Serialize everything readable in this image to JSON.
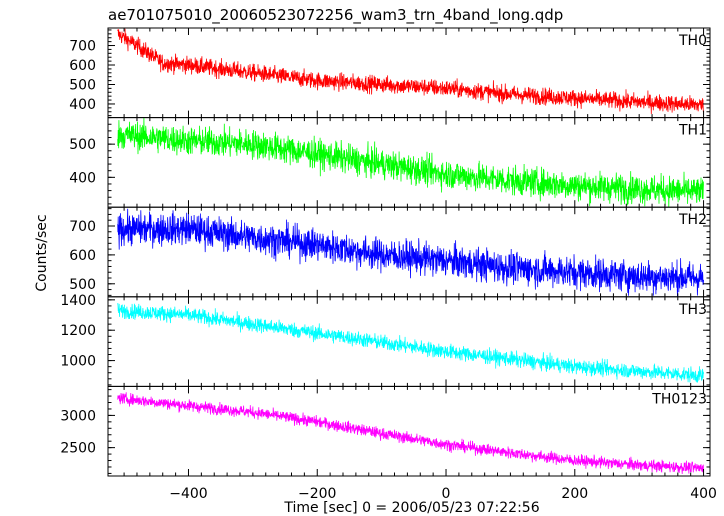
{
  "chart_data": {
    "type": "line",
    "title": "ae701075010_20060523072256_wam3_trn_4band_long.qdp",
    "xlabel": "Time [sec] 0 = 2006/05/23 07:22:56",
    "ylabel": "Counts/sec",
    "xlim": [
      -525,
      410
    ],
    "xticks": [
      -400,
      -200,
      0,
      200,
      400
    ],
    "x_range": [
      -510,
      400
    ],
    "grid": false,
    "panels": [
      {
        "name": "TH0",
        "color": "#ff0000",
        "ylim": [
          330,
          790
        ],
        "yticks": [
          400,
          500,
          600,
          700
        ],
        "trend": [
          [
            -510,
            760
          ],
          [
            -480,
            700
          ],
          [
            -440,
            610
          ],
          [
            -400,
            600
          ],
          [
            -300,
            560
          ],
          [
            -200,
            520
          ],
          [
            -100,
            500
          ],
          [
            0,
            480
          ],
          [
            100,
            450
          ],
          [
            200,
            430
          ],
          [
            300,
            410
          ],
          [
            400,
            395
          ]
        ],
        "noise": 22
      },
      {
        "name": "TH1",
        "color": "#00ff00",
        "ylim": [
          310,
          580
        ],
        "yticks": [
          400,
          500
        ],
        "trend": [
          [
            -510,
            530
          ],
          [
            -400,
            510
          ],
          [
            -300,
            500
          ],
          [
            -200,
            470
          ],
          [
            -100,
            440
          ],
          [
            0,
            410
          ],
          [
            100,
            390
          ],
          [
            200,
            375
          ],
          [
            300,
            365
          ],
          [
            400,
            355
          ]
        ],
        "noise": 22
      },
      {
        "name": "TH2",
        "color": "#0000ff",
        "ylim": [
          455,
          765
        ],
        "yticks": [
          500,
          600,
          700
        ],
        "trend": [
          [
            -510,
            690
          ],
          [
            -400,
            690
          ],
          [
            -300,
            660
          ],
          [
            -200,
            635
          ],
          [
            -100,
            600
          ],
          [
            0,
            580
          ],
          [
            100,
            555
          ],
          [
            200,
            540
          ],
          [
            300,
            525
          ],
          [
            400,
            520
          ]
        ],
        "noise": 28
      },
      {
        "name": "TH3",
        "color": "#00ffff",
        "ylim": [
          830,
          1420
        ],
        "yticks": [
          1000,
          1200,
          1400
        ],
        "trend": [
          [
            -510,
            1330
          ],
          [
            -400,
            1300
          ],
          [
            -300,
            1240
          ],
          [
            -200,
            1180
          ],
          [
            -100,
            1120
          ],
          [
            0,
            1060
          ],
          [
            100,
            1010
          ],
          [
            200,
            960
          ],
          [
            300,
            930
          ],
          [
            400,
            900
          ]
        ],
        "noise": 25
      },
      {
        "name": "TH0123",
        "color": "#ff00ff",
        "ylim": [
          2060,
          3450
        ],
        "yticks": [
          2500,
          3000
        ],
        "trend": [
          [
            -510,
            3270
          ],
          [
            -400,
            3150
          ],
          [
            -300,
            3050
          ],
          [
            -200,
            2900
          ],
          [
            -100,
            2720
          ],
          [
            0,
            2550
          ],
          [
            100,
            2420
          ],
          [
            200,
            2300
          ],
          [
            300,
            2230
          ],
          [
            400,
            2180
          ]
        ],
        "noise": 45
      }
    ]
  }
}
